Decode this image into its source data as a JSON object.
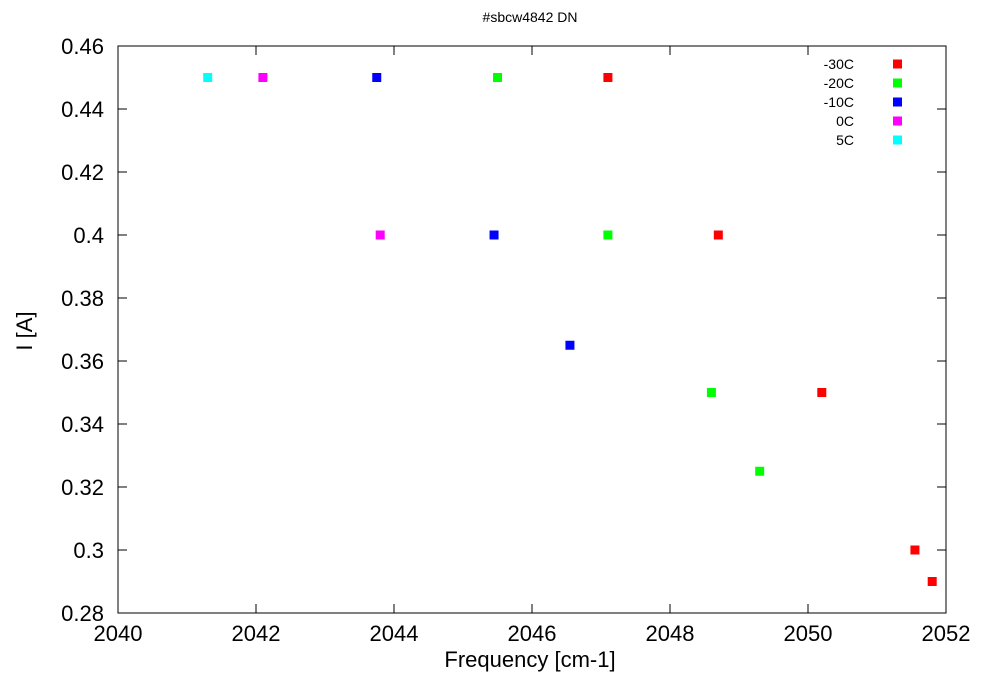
{
  "chart_data": {
    "type": "scatter",
    "title": "#sbcw4842 DN",
    "xlabel": "Frequency [cm-1]",
    "ylabel": "I [A]",
    "xlim": [
      2040,
      2052
    ],
    "ylim": [
      0.28,
      0.46
    ],
    "xticks": [
      2040,
      2042,
      2044,
      2046,
      2048,
      2050,
      2052
    ],
    "xtick_labels": [
      "2040",
      "2042",
      "2044",
      "2046",
      "2048",
      "2050",
      "2052"
    ],
    "yticks": [
      0.28,
      0.3,
      0.32,
      0.34,
      0.36,
      0.38,
      0.4,
      0.42,
      0.44,
      0.46
    ],
    "ytick_labels": [
      "0.28",
      "0.3",
      "0.32",
      "0.34",
      "0.36",
      "0.38",
      "0.4",
      "0.42",
      "0.44",
      "0.46"
    ],
    "grid": false,
    "legend_position": "top-right",
    "series": [
      {
        "name": "-30C",
        "color": "#ff0000",
        "points": [
          [
            2047.1,
            0.45
          ],
          [
            2048.7,
            0.4
          ],
          [
            2050.2,
            0.35
          ],
          [
            2051.55,
            0.3
          ],
          [
            2051.8,
            0.29
          ]
        ]
      },
      {
        "name": "-20C",
        "color": "#00ff00",
        "points": [
          [
            2045.5,
            0.45
          ],
          [
            2047.1,
            0.4
          ],
          [
            2048.6,
            0.35
          ],
          [
            2049.3,
            0.325
          ]
        ]
      },
      {
        "name": "-10C",
        "color": "#0000ff",
        "points": [
          [
            2043.75,
            0.45
          ],
          [
            2045.45,
            0.4
          ],
          [
            2046.55,
            0.365
          ]
        ]
      },
      {
        "name": "0C",
        "color": "#ff00ff",
        "points": [
          [
            2042.1,
            0.45
          ],
          [
            2043.8,
            0.4
          ]
        ]
      },
      {
        "name": "5C",
        "color": "#00ffff",
        "points": [
          [
            2041.3,
            0.45
          ]
        ]
      }
    ]
  }
}
